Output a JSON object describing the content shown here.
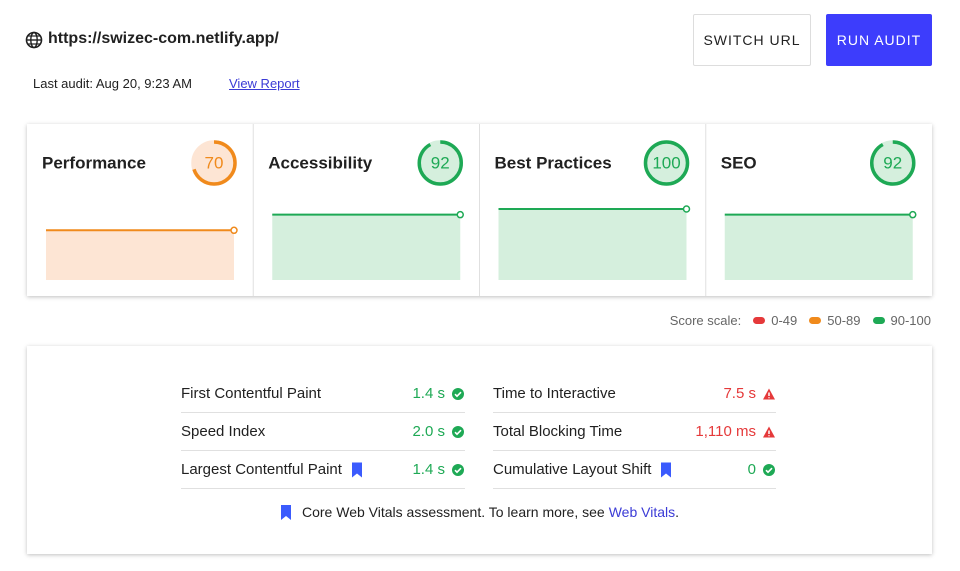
{
  "header": {
    "url": "https://swizec-com.netlify.app/",
    "last_audit": "Last audit: Aug 20, 9:23 AM",
    "view_report": "View Report",
    "buttons": [
      "SWITCH URL",
      "RUN AUDIT"
    ]
  },
  "scores": {
    "ylim": [
      0,
      100
    ],
    "items": [
      {
        "label": "Performance",
        "value": 70,
        "color": "#f08a1c",
        "fill": "#fde5d4"
      },
      {
        "label": "Accessibility",
        "value": 92,
        "color": "#1ea955",
        "fill": "#d5efdd"
      },
      {
        "label": "Best Practices",
        "value": 100,
        "color": "#1ea955",
        "fill": "#d5efdd"
      },
      {
        "label": "SEO",
        "value": 92,
        "color": "#1ea955",
        "fill": "#d5efdd"
      }
    ]
  },
  "score_scale": {
    "label": "Score scale:",
    "ranges": [
      {
        "label": "0-49",
        "color": "#e5393a"
      },
      {
        "label": "50-89",
        "color": "#f08a1c"
      },
      {
        "label": "90-100",
        "color": "#1ea955"
      }
    ]
  },
  "metrics": [
    {
      "name": "First Contentful Paint",
      "value": "1.4 s",
      "status": "pass",
      "core_web_vital": false
    },
    {
      "name": "Speed Index",
      "value": "2.0 s",
      "status": "pass",
      "core_web_vital": false
    },
    {
      "name": "Largest Contentful Paint",
      "value": "1.4 s",
      "status": "pass",
      "core_web_vital": true
    },
    {
      "name": "Time to Interactive",
      "value": "7.5 s",
      "status": "fail",
      "core_web_vital": false
    },
    {
      "name": "Total Blocking Time",
      "value": "1,110 ms",
      "status": "fail",
      "core_web_vital": false
    },
    {
      "name": "Cumulative Layout Shift",
      "value": "0",
      "status": "pass",
      "core_web_vital": true
    }
  ],
  "footnote": {
    "text": "Core Web Vitals assessment. To learn more, see",
    "link": "Web Vitals",
    "end": "."
  }
}
